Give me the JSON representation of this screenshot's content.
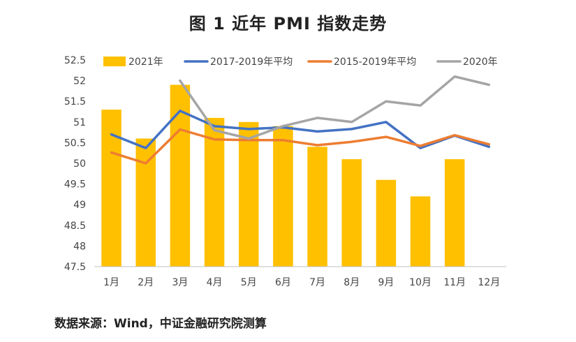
{
  "title": "图 1  近年 PMI 指数走势",
  "source": "数据来源：Wind，中证金融研究院测算",
  "chart_data": {
    "type": "bar+line",
    "categories": [
      "1月",
      "2月",
      "3月",
      "4月",
      "5月",
      "6月",
      "7月",
      "8月",
      "9月",
      "10月",
      "11月",
      "12月"
    ],
    "ylim": [
      47.5,
      52.5
    ],
    "yticks": [
      "47.5",
      "48",
      "48.5",
      "49",
      "49.5",
      "50",
      "50.5",
      "51",
      "51.5",
      "52",
      "52.5"
    ],
    "legend_position": "top",
    "grid": false,
    "bars": {
      "name": "2021年",
      "color": "#FFC000",
      "values": [
        51.3,
        50.6,
        51.9,
        51.1,
        51.0,
        50.9,
        50.4,
        50.1,
        49.6,
        49.2,
        50.1,
        null
      ]
    },
    "series": [
      {
        "name": "2017-2019年平均",
        "color": "#4472C4",
        "values": [
          50.7,
          50.37,
          51.27,
          50.9,
          50.83,
          50.87,
          50.77,
          50.83,
          51.0,
          50.37,
          50.67,
          50.4
        ]
      },
      {
        "name": "2015-2019年平均",
        "color": "#ED7D31",
        "values": [
          50.26,
          50.0,
          50.82,
          50.58,
          50.56,
          50.56,
          50.44,
          50.52,
          50.64,
          50.42,
          50.68,
          50.46
        ]
      },
      {
        "name": "2020年",
        "color": "#A5A5A5",
        "values": [
          null,
          null,
          52.0,
          50.8,
          50.6,
          50.9,
          51.1,
          51.0,
          51.5,
          51.4,
          52.1,
          51.9
        ]
      }
    ]
  }
}
